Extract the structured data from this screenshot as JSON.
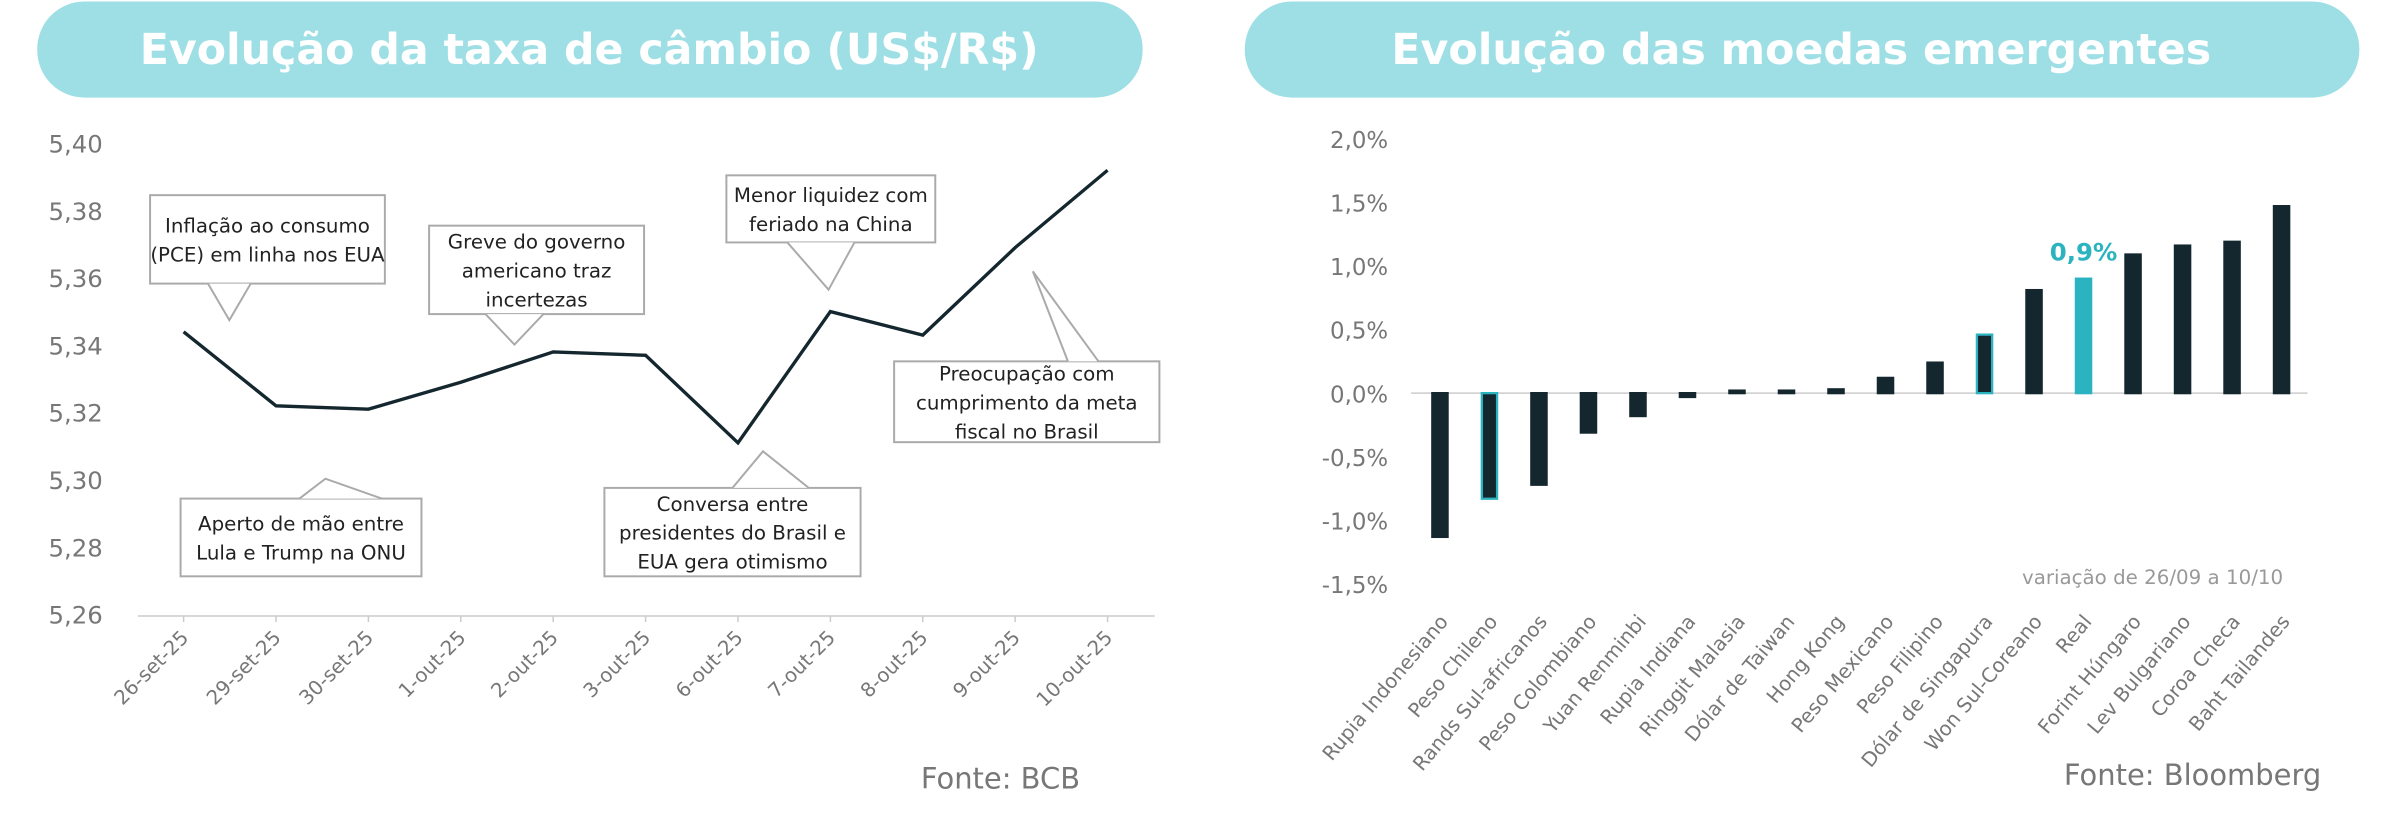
{
  "chart_data": [
    {
      "type": "line",
      "title": "Evolução da taxa de câmbio (US$/R$)",
      "source": "Fonte: BCB",
      "color": "#14262e",
      "categories": [
        "26-set-25",
        "29-set-25",
        "30-set-25",
        "1-out-25",
        "2-out-25",
        "3-out-25",
        "6-out-25",
        "7-out-25",
        "8-out-25",
        "9-out-25",
        "10-out-25"
      ],
      "values": [
        5.344,
        5.322,
        5.321,
        5.329,
        5.338,
        5.337,
        5.311,
        5.35,
        5.343,
        5.369,
        5.392
      ],
      "ylim": [
        5.26,
        5.4
      ],
      "yticks": [
        {
          "value": 5.26,
          "label": "5,26"
        },
        {
          "value": 5.28,
          "label": "5,28"
        },
        {
          "value": 5.3,
          "label": "5,30"
        },
        {
          "value": 5.32,
          "label": "5,32"
        },
        {
          "value": 5.34,
          "label": "5,34"
        },
        {
          "value": 5.36,
          "label": "5,36"
        },
        {
          "value": 5.38,
          "label": "5,38"
        },
        {
          "value": 5.4,
          "label": "5,40"
        }
      ],
      "annotations": [
        {
          "lines": [
            "Inflação ao consumo",
            "(PCE) em linha nos EUA"
          ]
        },
        {
          "lines": [
            "Greve do governo",
            "americano traz",
            "incertezas"
          ]
        },
        {
          "lines": [
            "Menor liquidez com",
            "feriado na China"
          ]
        },
        {
          "lines": [
            "Preocupação com",
            "cumprimento da meta",
            "fiscal no Brasil"
          ]
        },
        {
          "lines": [
            "Aperto de mão entre",
            "Lula e Trump na ONU"
          ]
        },
        {
          "lines": [
            "Conversa entre",
            "presidentes do Brasil e",
            "EUA gera otimismo"
          ]
        }
      ]
    },
    {
      "type": "bar",
      "title": "Evolução das moedas emergentes",
      "source": "Fonte: Bloomberg",
      "note": "variação de 26/09 a 10/10",
      "categories": [
        "Rupia Indonesiano",
        "Peso Chileno",
        "Rands Sul-africanos",
        "Peso Colombiano",
        "Yuan Renminbi",
        "Rupia Indiana",
        "Ringgit Malasia",
        "Dólar de Taiwan",
        "Hong Kong",
        "Peso Mexicano",
        "Peso Filipino",
        "Dólar de Singapura",
        "Won Sul-Coreano",
        "Real",
        "Forint Húngaro",
        "Lev Bulgariano",
        "Coroa Checa",
        "Baht Tailandes"
      ],
      "values": [
        -1.13,
        -0.83,
        -0.72,
        -0.31,
        -0.18,
        -0.03,
        0.02,
        0.02,
        0.03,
        0.12,
        0.24,
        0.46,
        0.81,
        0.9,
        1.09,
        1.16,
        1.19,
        1.47
      ],
      "value_labels": [
        null,
        null,
        null,
        null,
        null,
        null,
        null,
        null,
        null,
        null,
        null,
        null,
        null,
        "0,9%",
        null,
        null,
        null,
        null
      ],
      "colors": [
        "#14262e",
        "#14262e",
        "#14262e",
        "#14262e",
        "#14262e",
        "#14262e",
        "#14262e",
        "#14262e",
        "#14262e",
        "#14262e",
        "#14262e",
        "#14262e",
        "#14262e",
        "#2bb3c0",
        "#14262e",
        "#14262e",
        "#14262e",
        "#14262e"
      ],
      "edgecolors": [
        "#14262e",
        "#2bb3c0",
        "#14262e",
        "#14262e",
        "#14262e",
        "#14262e",
        "#14262e",
        "#14262e",
        "#14262e",
        "#14262e",
        "#14262e",
        "#2bb3c0",
        "#14262e",
        "#2bb3c0",
        "#14262e",
        "#14262e",
        "#14262e",
        "#14262e"
      ],
      "label_color": "#2bb3c0",
      "ylim": [
        -1.5,
        2.0
      ],
      "yticks": [
        {
          "value": -1.5,
          "label": "-1,5%"
        },
        {
          "value": -1.0,
          "label": "-1,0%"
        },
        {
          "value": -0.5,
          "label": "-0,5%"
        },
        {
          "value": 0,
          "label": "0,0%"
        },
        {
          "value": 0.5,
          "label": "0,5%"
        },
        {
          "value": 1.0,
          "label": "1,0%"
        },
        {
          "value": 1.5,
          "label": "1,5%"
        },
        {
          "value": 2.0,
          "label": "2,0%"
        }
      ]
    }
  ]
}
